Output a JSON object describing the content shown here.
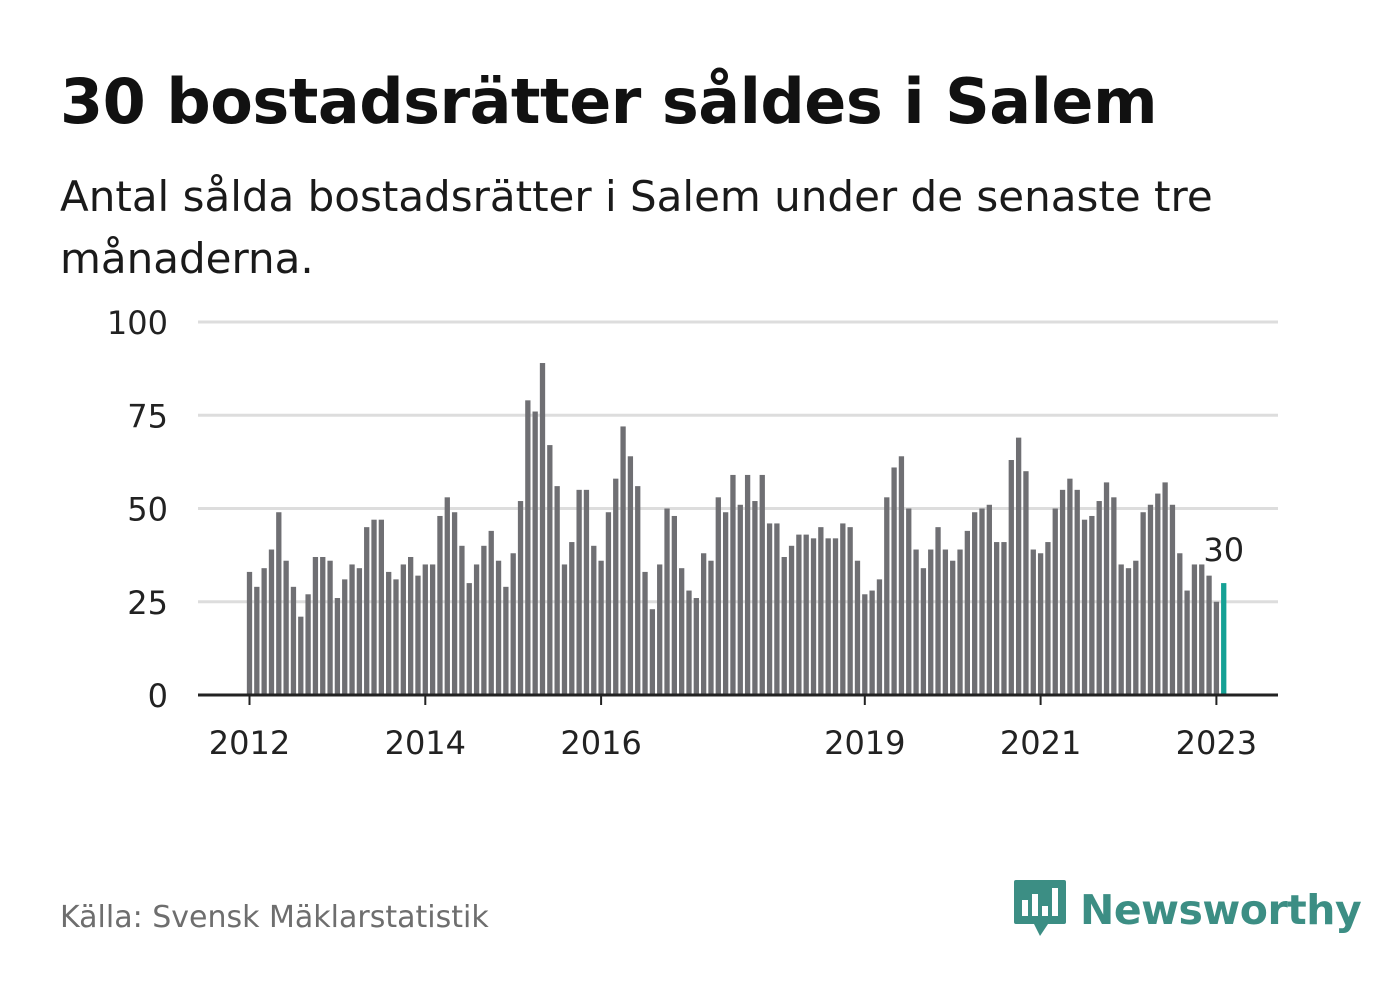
{
  "header": {
    "title": "30 bostadsrätter såldes i Salem",
    "subtitle": "Antal sålda bostadsrätter i Salem under de senaste tre månaderna."
  },
  "footer": {
    "source": "Källa: Svensk Mäklarstatistik",
    "brand": "Newsworthy",
    "brand_icon": "chart-speech-bubble-icon"
  },
  "colors": {
    "bar": "#6f6f73",
    "highlight": "#15a195",
    "grid": "#dddddd",
    "axis": "#222222",
    "brand": "#3c8e84"
  },
  "chart_data": {
    "type": "bar",
    "title": "30 bostadsrätter såldes i Salem",
    "subtitle": "Antal sålda bostadsrätter i Salem under de senaste tre månaderna.",
    "xlabel": "",
    "ylabel": "",
    "ylim": [
      0,
      100
    ],
    "yticks": [
      0,
      25,
      50,
      75,
      100
    ],
    "x_start": "2012-01",
    "x_end": "2023-02",
    "xticks": [
      {
        "date": "2012-01",
        "label": "2012"
      },
      {
        "date": "2014-01",
        "label": "2014"
      },
      {
        "date": "2016-01",
        "label": "2016"
      },
      {
        "date": "2019-01",
        "label": "2019"
      },
      {
        "date": "2021-01",
        "label": "2021"
      },
      {
        "date": "2023-01",
        "label": "2023"
      }
    ],
    "grid": true,
    "highlight_label": "30",
    "values": [
      33,
      29,
      34,
      39,
      49,
      36,
      29,
      21,
      27,
      37,
      37,
      36,
      26,
      31,
      35,
      34,
      45,
      47,
      47,
      33,
      31,
      35,
      37,
      32,
      35,
      35,
      48,
      53,
      49,
      40,
      30,
      35,
      40,
      44,
      36,
      29,
      38,
      52,
      79,
      76,
      89,
      67,
      56,
      35,
      41,
      55,
      55,
      40,
      36,
      49,
      58,
      72,
      64,
      56,
      33,
      23,
      35,
      50,
      48,
      34,
      28,
      26,
      38,
      36,
      53,
      49,
      59,
      51,
      59,
      52,
      59,
      46,
      46,
      37,
      40,
      43,
      43,
      42,
      45,
      42,
      42,
      46,
      45,
      36,
      27,
      28,
      31,
      53,
      61,
      64,
      50,
      39,
      34,
      39,
      45,
      39,
      36,
      39,
      44,
      49,
      50,
      51,
      41,
      41,
      63,
      69,
      60,
      39,
      38,
      41,
      50,
      55,
      58,
      55,
      47,
      48,
      52,
      57,
      53,
      35,
      34,
      36,
      49,
      51,
      54,
      57,
      51,
      38,
      28,
      35,
      35,
      32,
      25,
      30
    ]
  }
}
